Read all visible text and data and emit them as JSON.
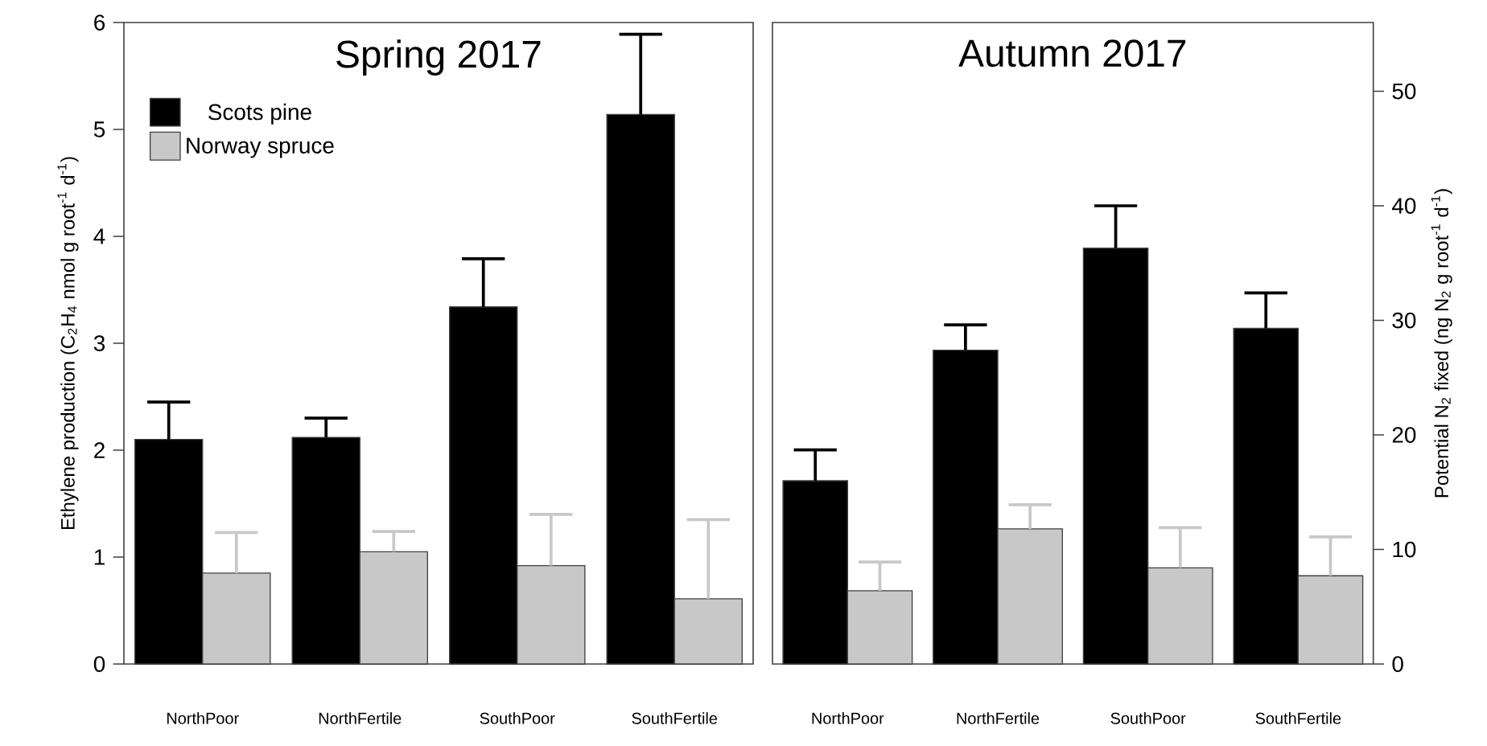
{
  "chart_data": [
    {
      "type": "bar",
      "title": "Spring 2017",
      "ylabel": "Ethylene production (C$_{2}$H$_{4}$ nmol g root$^{-1}$ d$^{-1}$)",
      "categories": [
        "NorthPoor",
        "NorthFertile",
        "SouthPoor",
        "SouthFertile"
      ],
      "series": [
        {
          "name": "Scots pine",
          "color": "#000000",
          "values": [
            2.1,
            2.12,
            3.34,
            5.14
          ],
          "errors": [
            [
              2.1,
              2.45
            ],
            [
              2.12,
              2.3
            ],
            [
              3.34,
              3.79
            ],
            [
              5.14,
              5.89
            ]
          ]
        },
        {
          "name": "Norway spruce",
          "color": "#c8c8c8",
          "values": [
            0.85,
            1.05,
            0.92,
            0.61
          ],
          "errors": [
            [
              0.85,
              1.23
            ],
            [
              1.05,
              1.24
            ],
            [
              0.92,
              1.4
            ],
            [
              0.61,
              1.35
            ]
          ]
        }
      ],
      "ylim": [
        0,
        6
      ],
      "yticks": [
        0,
        1,
        2,
        3,
        4,
        5,
        6
      ],
      "legend": "top left"
    },
    {
      "type": "bar",
      "title": "Autumn 2017",
      "y2label": "Potential N$_{2}$ fixed (ng N$_{2}$ g root$^{-1}$ d$^{-1}$)",
      "categories": [
        "NorthPoor",
        "NorthFertile",
        "SouthPoor",
        "SouthFertile"
      ],
      "series": [
        {
          "color": "#000000",
          "axis": "y2",
          "values": [
            16.0,
            27.4,
            36.3,
            29.3
          ],
          "errors": [
            [
              16.0,
              18.7
            ],
            [
              27.4,
              29.6
            ],
            [
              36.3,
              40.0
            ],
            [
              29.3,
              32.4
            ]
          ]
        },
        {
          "color": "#c8c8c8",
          "axis": "y2",
          "values": [
            6.4,
            11.8,
            8.4,
            7.7
          ],
          "errors": [
            [
              6.4,
              8.9
            ],
            [
              11.8,
              13.9
            ],
            [
              8.4,
              11.9
            ],
            [
              7.7,
              11.1
            ]
          ]
        }
      ],
      "y2lim": [
        0,
        56
      ],
      "y2ticks": [
        0,
        10,
        20,
        30,
        40,
        50
      ]
    }
  ]
}
